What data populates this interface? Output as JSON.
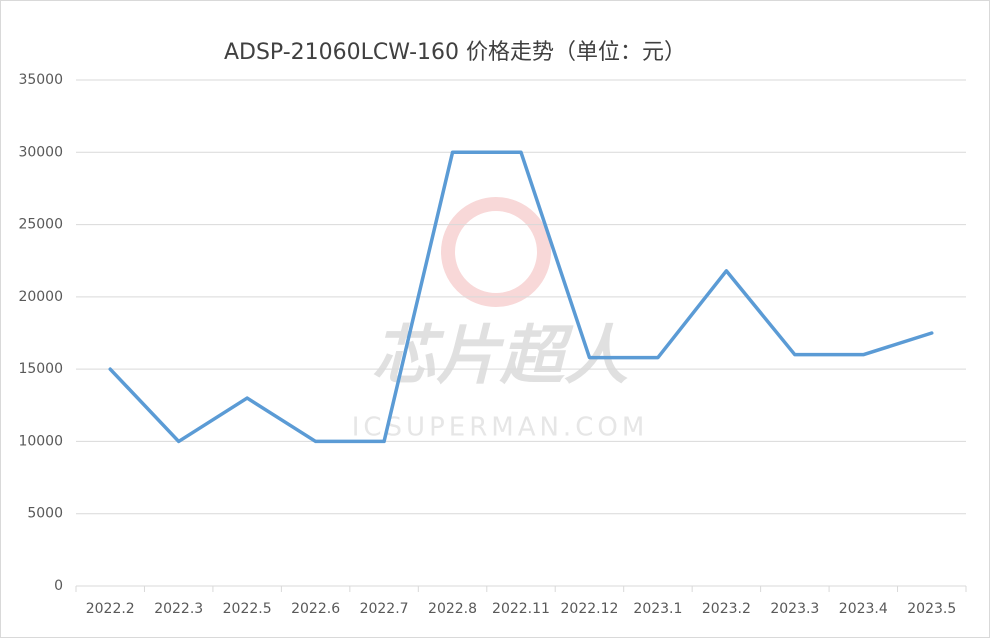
{
  "chart_data": {
    "type": "line",
    "title": "ADSP-21060LCW-160 价格走势（单位：元）",
    "watermark": [
      "芯片超人",
      "ICSUPERMAN.COM"
    ],
    "categories": [
      "2022.2",
      "2022.3",
      "2022.5",
      "2022.6",
      "2022.7",
      "2022.8",
      "2022.11",
      "2022.12",
      "2023.1",
      "2023.2",
      "2023.3",
      "2023.4",
      "2023.5"
    ],
    "values": [
      15000,
      10000,
      13000,
      10000,
      10000,
      30000,
      30000,
      15800,
      15800,
      21800,
      16000,
      16000,
      17500
    ],
    "color": "#5b9bd5",
    "ylim": [
      0,
      35000
    ],
    "yticks": [
      0,
      5000,
      10000,
      15000,
      20000,
      25000,
      30000,
      35000
    ],
    "grid": true
  }
}
